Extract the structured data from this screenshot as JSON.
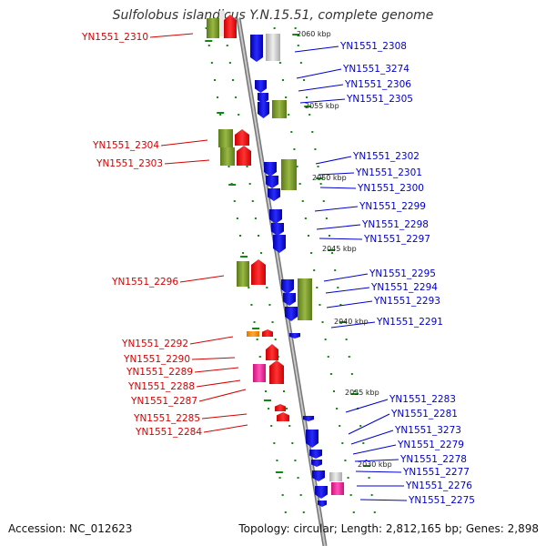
{
  "title": "Sulfolobus islandicus Y.N.15.51, complete genome",
  "footer": {
    "accession": "Accession: NC_012623",
    "topology": "Topology: circular; Length: 2,812,165 bp; Genes: 2,898"
  },
  "colors": {
    "left_label": "#d40000",
    "right_label": "#0000cc",
    "backbone": "#999999",
    "ticks": "#118811"
  },
  "kbp_marks": [
    "2060 kbp",
    "2055 kbp",
    "2050 kbp",
    "2045 kbp",
    "2040 kbp",
    "2035 kbp",
    "2030 kbp"
  ],
  "left_genes": [
    "YN1551_2310",
    "YN1551_2304",
    "YN1551_2303",
    "YN1551_2296",
    "YN1551_2292",
    "YN1551_2290",
    "YN1551_2289",
    "YN1551_2288",
    "YN1551_2287",
    "YN1551_2285",
    "YN1551_2284"
  ],
  "right_genes": [
    "YN1551_2308",
    "YN1551_3274",
    "YN1551_2306",
    "YN1551_2305",
    "YN1551_2302",
    "YN1551_2301",
    "YN1551_2300",
    "YN1551_2299",
    "YN1551_2298",
    "YN1551_2297",
    "YN1551_2295",
    "YN1551_2294",
    "YN1551_2293",
    "YN1551_2291",
    "YN1551_2283",
    "YN1551_2281",
    "YN1551_3273",
    "YN1551_2279",
    "YN1551_2278",
    "YN1551_2277",
    "YN1551_2276",
    "YN1551_2275"
  ]
}
